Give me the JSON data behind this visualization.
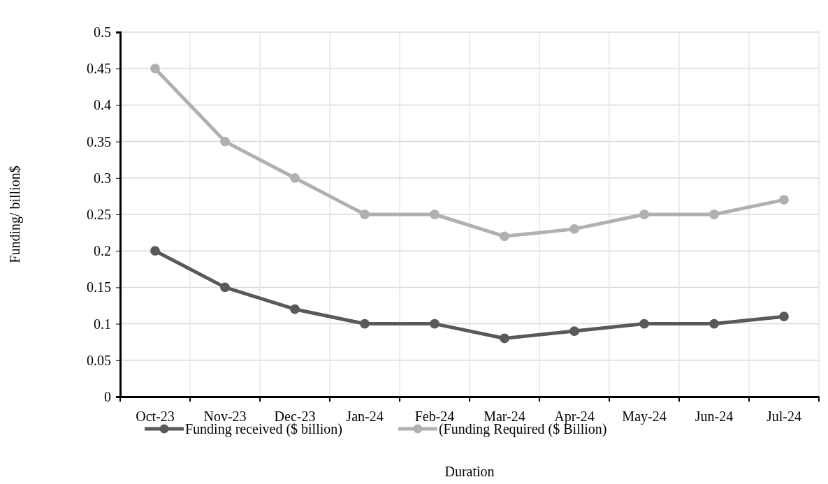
{
  "chart_data": {
    "type": "line",
    "xlabel": "Duration",
    "ylabel": "Funding/ billion$",
    "categories": [
      "Oct-23",
      "Nov-23",
      "Dec-23",
      "Jan-24",
      "Feb-24",
      "Mar-24",
      "Apr-24",
      "May-24",
      "Jun-24",
      "Jul-24"
    ],
    "series": [
      {
        "name": "Funding received ($ billion)",
        "color": "#595959",
        "values": [
          0.2,
          0.15,
          0.12,
          0.1,
          0.1,
          0.08,
          0.09,
          0.1,
          0.1,
          0.11
        ]
      },
      {
        "name": "(Funding Required ($ Billion)",
        "color": "#b0b0b0",
        "values": [
          0.45,
          0.35,
          0.3,
          0.25,
          0.25,
          0.22,
          0.23,
          0.25,
          0.25,
          0.27
        ]
      }
    ],
    "ylim": [
      0,
      0.5
    ],
    "yticks": [
      0,
      0.05,
      0.1,
      0.15,
      0.2,
      0.25,
      0.3,
      0.35,
      0.4,
      0.45,
      0.5
    ],
    "grid": true,
    "legend": "bottom",
    "marker": "circle",
    "line_style": "solid"
  }
}
